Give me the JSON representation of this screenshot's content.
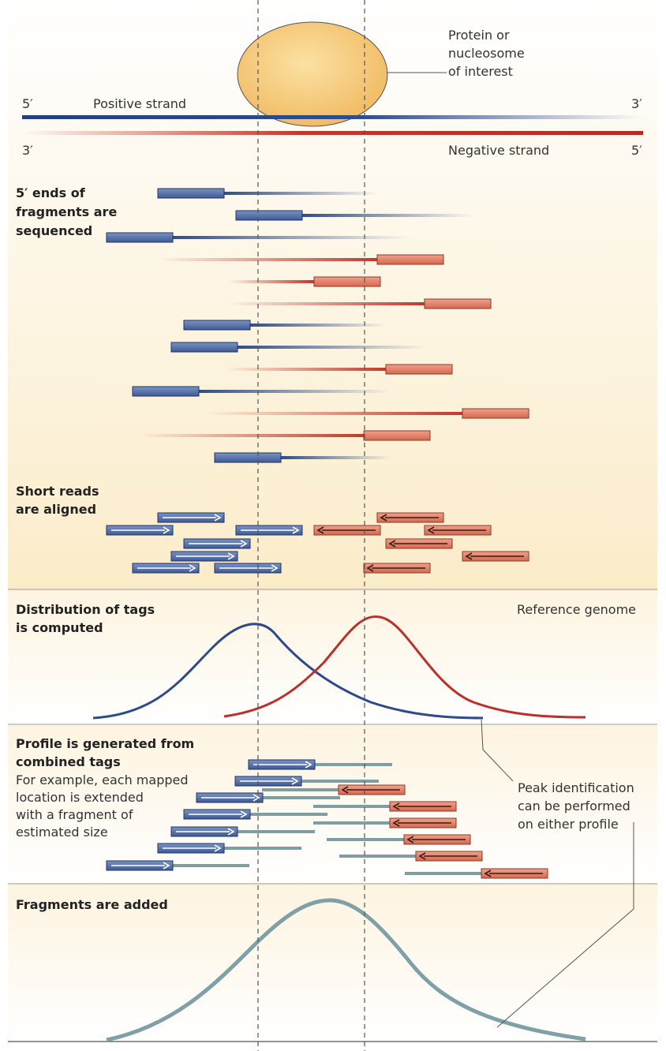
{
  "protein": {
    "label": [
      "Protein or",
      "nucleosome",
      "of interest"
    ]
  },
  "strands": {
    "positive_label": "Positive strand",
    "negative_label": "Negative strand",
    "prime_5": "5′",
    "prime_3": "3′"
  },
  "sections": {
    "fragments_sequenced": [
      "5′ ends of",
      "fragments are",
      "sequenced"
    ],
    "reads_aligned": [
      "Short reads",
      "are aligned"
    ],
    "tags_distribution": [
      "Distribution of tags",
      "is computed"
    ],
    "reference_genome": "Reference genome",
    "profile_title": [
      "Profile is generated from",
      "combined tags"
    ],
    "profile_description": [
      "For example, each mapped",
      "location is extended",
      "with a fragment of",
      "estimated size"
    ],
    "peak_note": [
      "Peak identification",
      "can be performed",
      "on either profile"
    ],
    "fragments_added": "Fragments are added"
  },
  "colors": {
    "positive": "#3d5a95",
    "negative": "#c0392b",
    "positive_box": "#4f6fa8",
    "negative_box": "#df7f69",
    "fragment_gray": "#7f9ea3",
    "background": "#fdf3dc"
  }
}
